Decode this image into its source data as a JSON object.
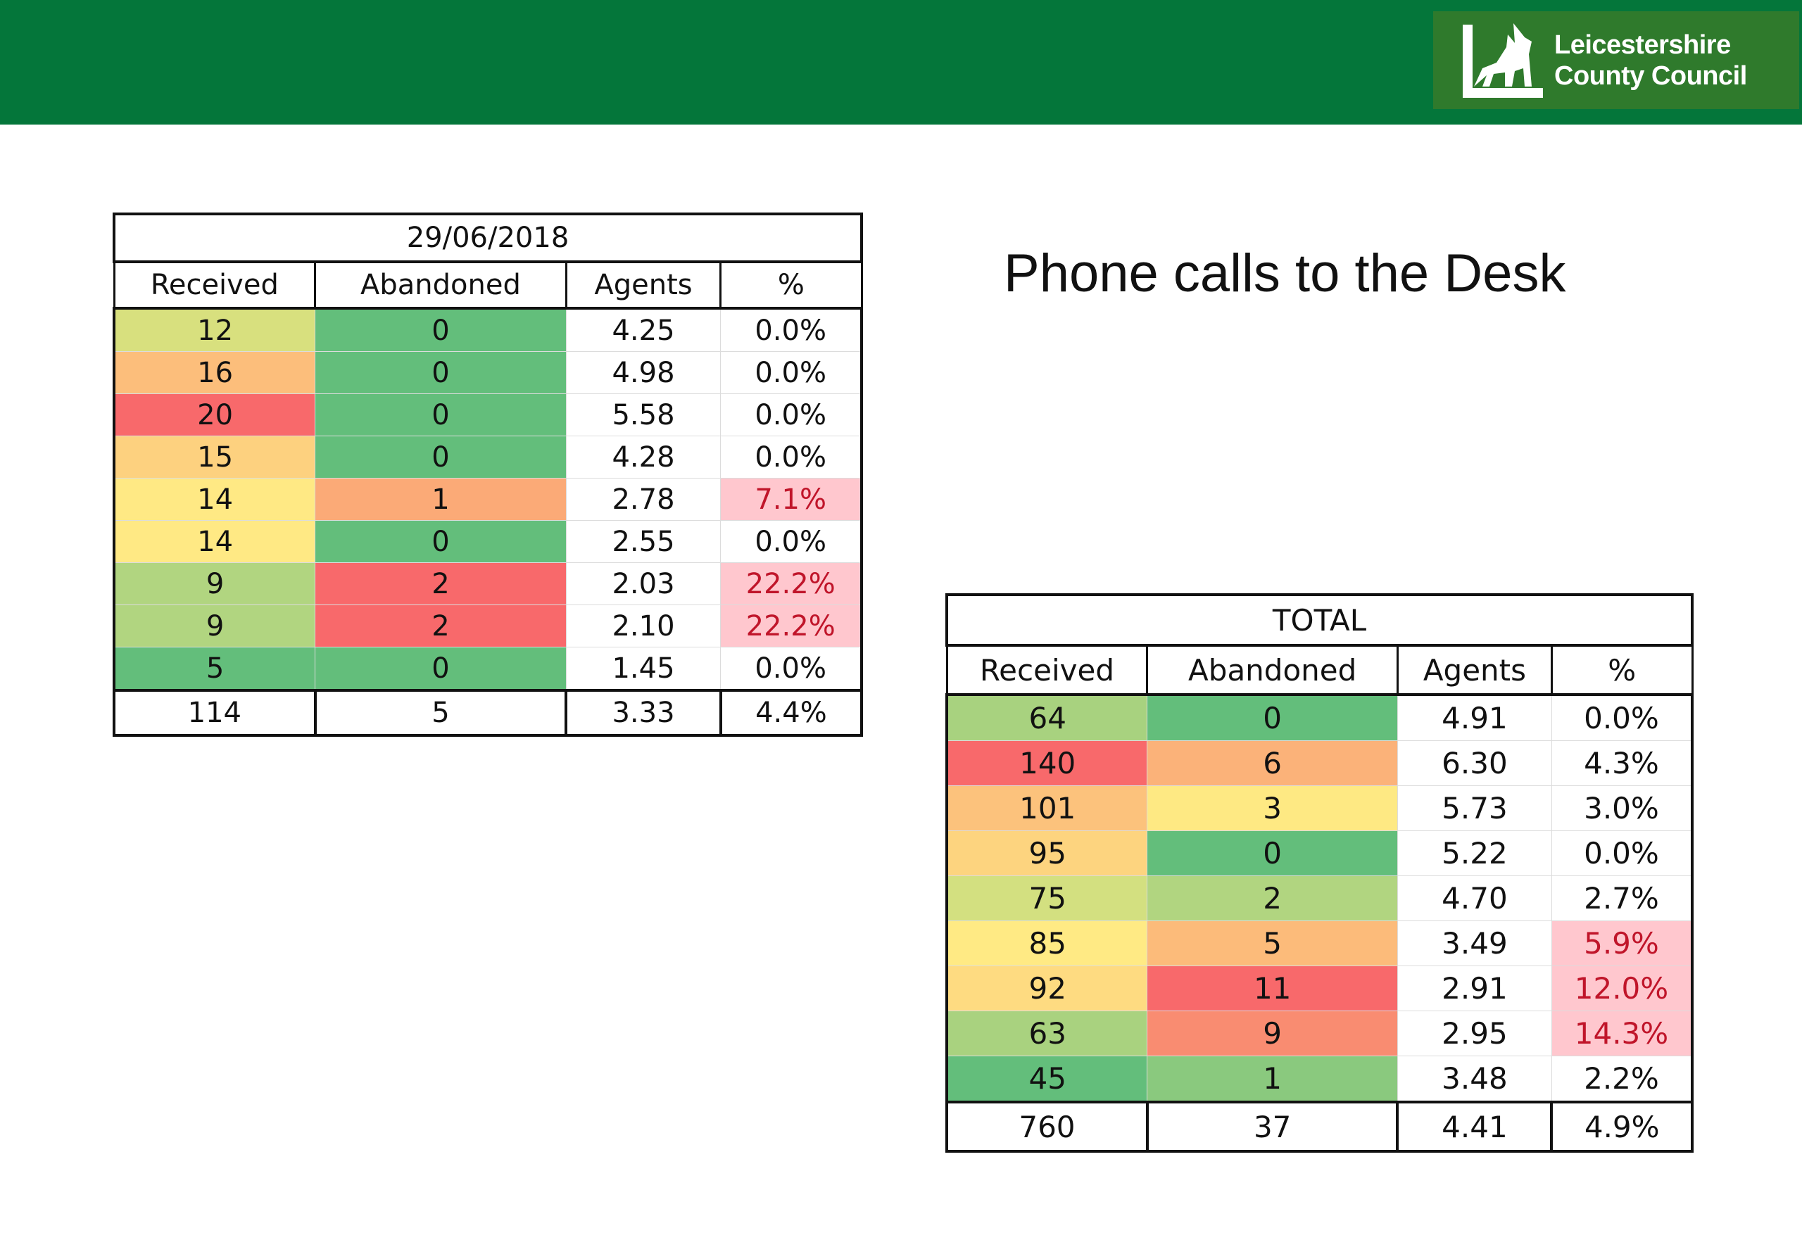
{
  "header": {
    "logo_line1": "Leicestershire",
    "logo_line2": "County Council",
    "colors": {
      "banner": "#04763a",
      "logo_bg": "#2f7a2c"
    }
  },
  "slide_title": "Phone calls to the Desk",
  "tables": [
    {
      "title": "29/06/2018",
      "columns": [
        "Received",
        "Abandoned",
        "Agents",
        "%"
      ],
      "rows": [
        [
          "12",
          "0",
          "4.25",
          "0.0%"
        ],
        [
          "16",
          "0",
          "4.98",
          "0.0%"
        ],
        [
          "20",
          "0",
          "5.58",
          "0.0%"
        ],
        [
          "15",
          "0",
          "4.28",
          "0.0%"
        ],
        [
          "14",
          "1",
          "2.78",
          "7.1%"
        ],
        [
          "14",
          "0",
          "2.55",
          "0.0%"
        ],
        [
          "9",
          "2",
          "2.03",
          "22.2%"
        ],
        [
          "9",
          "2",
          "2.10",
          "22.2%"
        ],
        [
          "5",
          "0",
          "1.45",
          "0.0%"
        ]
      ],
      "colors": [
        [
          "#d8e07e",
          "#63be7b",
          "#ffffff",
          "#ffffff"
        ],
        [
          "#fcbe7b",
          "#63be7b",
          "#ffffff",
          "#ffffff"
        ],
        [
          "#f8696b",
          "#63be7b",
          "#ffffff",
          "#ffffff"
        ],
        [
          "#fdd17f",
          "#63be7b",
          "#ffffff",
          "#ffffff"
        ],
        [
          "#ffe984",
          "#fbaa77",
          "#ffffff",
          "#ffc7ce"
        ],
        [
          "#ffe984",
          "#63be7b",
          "#ffffff",
          "#ffffff"
        ],
        [
          "#b1d580",
          "#f8696b",
          "#ffffff",
          "#ffc7ce"
        ],
        [
          "#b1d580",
          "#f8696b",
          "#ffffff",
          "#ffc7ce"
        ],
        [
          "#63be7b",
          "#63be7b",
          "#ffffff",
          "#ffffff"
        ]
      ],
      "highlight_pct": [
        false,
        false,
        false,
        false,
        true,
        false,
        true,
        true,
        false
      ],
      "total": [
        "114",
        "5",
        "3.33",
        "4.4%"
      ]
    },
    {
      "title": "TOTAL",
      "columns": [
        "Received",
        "Abandoned",
        "Agents",
        "%"
      ],
      "rows": [
        [
          "64",
          "0",
          "4.91",
          "0.0%"
        ],
        [
          "140",
          "6",
          "6.30",
          "4.3%"
        ],
        [
          "101",
          "3",
          "5.73",
          "3.0%"
        ],
        [
          "95",
          "0",
          "5.22",
          "0.0%"
        ],
        [
          "75",
          "2",
          "4.70",
          "2.7%"
        ],
        [
          "85",
          "5",
          "3.49",
          "5.9%"
        ],
        [
          "92",
          "11",
          "2.91",
          "12.0%"
        ],
        [
          "63",
          "9",
          "2.95",
          "14.3%"
        ],
        [
          "45",
          "1",
          "3.48",
          "2.2%"
        ]
      ],
      "colors": [
        [
          "#a8d27f",
          "#63be7b",
          "#ffffff",
          "#ffffff"
        ],
        [
          "#f8696b",
          "#fbb279",
          "#ffffff",
          "#ffffff"
        ],
        [
          "#fcc27c",
          "#fee983",
          "#ffffff",
          "#ffffff"
        ],
        [
          "#fdd47f",
          "#63be7b",
          "#ffffff",
          "#ffffff"
        ],
        [
          "#d3e080",
          "#b1d580",
          "#ffffff",
          "#ffffff"
        ],
        [
          "#ffea84",
          "#fcbb7a",
          "#ffffff",
          "#ffc7ce"
        ],
        [
          "#fedb81",
          "#f8696b",
          "#ffffff",
          "#ffc7ce"
        ],
        [
          "#a9d27f",
          "#f98c71",
          "#ffffff",
          "#ffc7ce"
        ],
        [
          "#63be7b",
          "#8ac97e",
          "#ffffff",
          "#ffffff"
        ]
      ],
      "highlight_pct": [
        false,
        false,
        false,
        false,
        false,
        true,
        true,
        true,
        false
      ],
      "total": [
        "760",
        "37",
        "4.41",
        "4.9%"
      ]
    }
  ]
}
